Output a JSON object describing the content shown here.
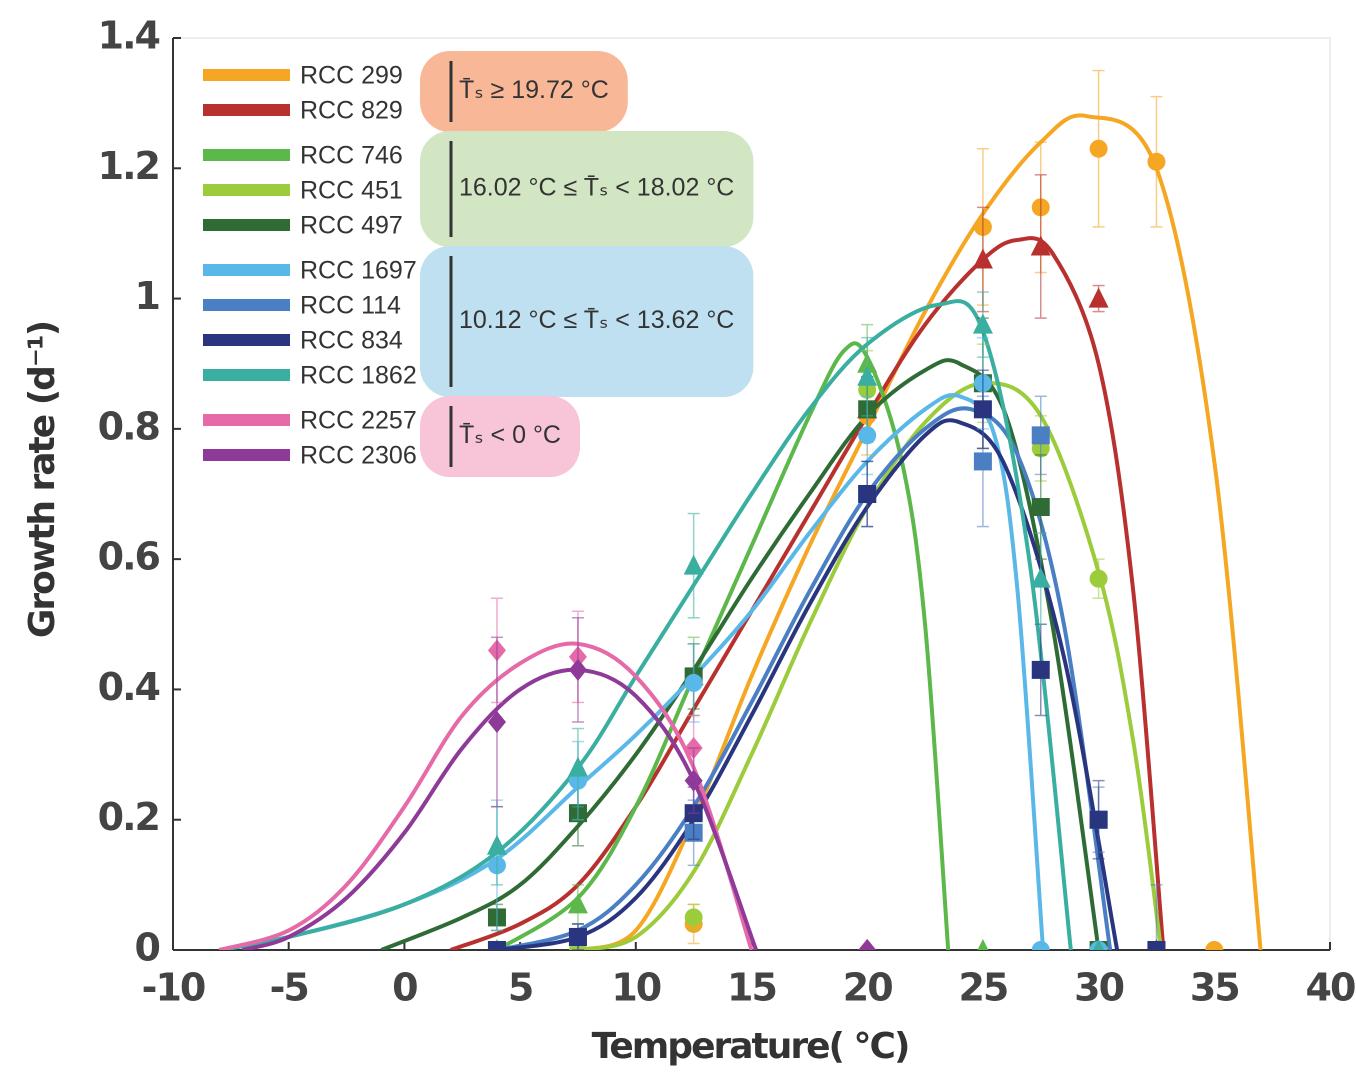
{
  "chart_data": {
    "type": "fitted-scatter",
    "x_label": "Temperature( °C)",
    "y_label": "Growth rate (d⁻¹)",
    "xlim": [
      -10,
      40
    ],
    "ylim": [
      0,
      1.4
    ],
    "xticks": [
      -10,
      -5,
      0,
      5,
      10,
      15,
      20,
      25,
      30,
      35,
      40
    ],
    "yticks": [
      0,
      0.2,
      0.4,
      0.6,
      0.8,
      1,
      1.2,
      1.4
    ],
    "series": [
      {
        "name": "RCC 299",
        "color": "#f5a623",
        "marker": "circle",
        "x": [
          12.5,
          20,
          25,
          27.5,
          30,
          32.5,
          35
        ],
        "values": [
          0.04,
          0.82,
          1.11,
          1.14,
          1.23,
          1.21,
          0
        ],
        "errors": [
          0.03,
          0.06,
          0.12,
          0.1,
          0.12,
          0.1,
          null
        ],
        "fit_x": [
          7.5,
          10,
          12.5,
          15,
          17.5,
          20,
          22.5,
          25,
          27.5,
          29.5,
          32.5,
          35,
          37
        ],
        "fit_values": [
          0,
          0.03,
          0.2,
          0.42,
          0.62,
          0.8,
          0.98,
          1.13,
          1.24,
          1.28,
          1.2,
          0.75,
          0
        ]
      },
      {
        "name": "RCC 829",
        "color": "#b8312f",
        "marker": "triangle",
        "x": [
          20,
          25,
          27.5,
          30,
          32.5
        ],
        "values": [
          0.83,
          1.06,
          1.08,
          1.0,
          0
        ],
        "errors": [
          0.05,
          0.08,
          0.11,
          0.02,
          null
        ],
        "fit_x": [
          2,
          5,
          7.5,
          10,
          12.5,
          15,
          17.5,
          20,
          22.5,
          25,
          26.5,
          28,
          30,
          31.5,
          32.8
        ],
        "fit_values": [
          0,
          0.04,
          0.1,
          0.22,
          0.37,
          0.52,
          0.67,
          0.82,
          0.96,
          1.06,
          1.09,
          1.07,
          0.9,
          0.55,
          0
        ]
      },
      {
        "name": "RCC 746",
        "color": "#5cb84a",
        "marker": "triangle",
        "x": [
          4,
          7.5,
          12.5,
          20,
          25
        ],
        "values": [
          0,
          0.07,
          0.42,
          0.9,
          0
        ],
        "errors": [
          null,
          0.03,
          0.06,
          0.06,
          null
        ],
        "fit_x": [
          4,
          7.5,
          10,
          12.5,
          15,
          17.5,
          19,
          20,
          21.5,
          22.5,
          23.5
        ],
        "fit_values": [
          0,
          0.08,
          0.22,
          0.42,
          0.62,
          0.82,
          0.92,
          0.91,
          0.75,
          0.5,
          0
        ]
      },
      {
        "name": "RCC 451",
        "color": "#9ccc3c",
        "marker": "circle",
        "x": [
          7.5,
          12.5,
          20,
          25,
          27.5,
          30,
          32.5
        ],
        "values": [
          0,
          0.05,
          0.86,
          0.87,
          0.77,
          0.57,
          0
        ],
        "errors": [
          null,
          0.02,
          0.06,
          0.06,
          0.05,
          0.03,
          null
        ],
        "fit_x": [
          7.5,
          10,
          12.5,
          15,
          17.5,
          20,
          22.5,
          25,
          27.5,
          30,
          31.5,
          32.7
        ],
        "fit_values": [
          0,
          0.02,
          0.12,
          0.3,
          0.5,
          0.68,
          0.81,
          0.87,
          0.82,
          0.58,
          0.32,
          0
        ]
      },
      {
        "name": "RCC 497",
        "color": "#2e6b35",
        "marker": "square",
        "x": [
          4,
          7.5,
          12.5,
          20,
          25,
          27.5,
          30
        ],
        "values": [
          0.05,
          0.21,
          0.42,
          0.83,
          0.87,
          0.68,
          0
        ],
        "errors": [
          0.02,
          0.05,
          0.05,
          0.05,
          0.1,
          0.08,
          null
        ],
        "fit_x": [
          -1,
          2.5,
          5,
          7.5,
          10,
          12.5,
          15,
          17.5,
          20,
          22.5,
          24,
          26,
          28,
          30
        ],
        "fit_values": [
          0,
          0.05,
          0.1,
          0.19,
          0.3,
          0.43,
          0.57,
          0.7,
          0.82,
          0.89,
          0.9,
          0.82,
          0.5,
          0
        ]
      },
      {
        "name": "RCC 1697",
        "color": "#5ab8e8",
        "marker": "circle",
        "x": [
          4,
          7.5,
          12.5,
          20,
          25,
          27.5,
          30
        ],
        "values": [
          0.13,
          0.26,
          0.41,
          0.79,
          0.87,
          0,
          0
        ],
        "errors": [
          0.1,
          0.06,
          0.06,
          0.06,
          0.07,
          null,
          null
        ],
        "fit_x": [
          -8,
          -5,
          0,
          4,
          7.5,
          10,
          12.5,
          15,
          17.5,
          20,
          22.5,
          24,
          25.5,
          26.5,
          27.6
        ],
        "fit_values": [
          0,
          0.02,
          0.07,
          0.14,
          0.25,
          0.33,
          0.42,
          0.52,
          0.64,
          0.75,
          0.83,
          0.85,
          0.79,
          0.55,
          0
        ]
      },
      {
        "name": "RCC 114",
        "color": "#4a7fc4",
        "marker": "square",
        "x": [
          4,
          7.5,
          12.5,
          20,
          25,
          27.5,
          30,
          32.5
        ],
        "values": [
          0,
          0.02,
          0.18,
          0.7,
          0.75,
          0.79,
          0.2,
          0
        ],
        "errors": [
          null,
          0.02,
          0.05,
          0.05,
          0.1,
          0.06,
          0.05,
          0.1
        ],
        "fit_x": [
          4,
          7.5,
          10,
          12.5,
          15,
          17.5,
          20,
          22.5,
          24.5,
          26.5,
          28.5,
          30.5
        ],
        "fit_values": [
          0,
          0.03,
          0.1,
          0.22,
          0.38,
          0.55,
          0.7,
          0.8,
          0.83,
          0.76,
          0.5,
          0
        ]
      },
      {
        "name": "RCC 834",
        "color": "#2a3580",
        "marker": "square",
        "x": [
          4,
          7.5,
          12.5,
          20,
          25,
          27.5,
          30,
          32.5
        ],
        "values": [
          0,
          0.02,
          0.21,
          0.7,
          0.83,
          0.43,
          0.2,
          0
        ],
        "errors": [
          null,
          0.02,
          0.04,
          0.05,
          0.06,
          0.07,
          0.06,
          null
        ],
        "fit_x": [
          4,
          7.5,
          10,
          12.5,
          15,
          17.5,
          20,
          22.5,
          24,
          26,
          28.5,
          30.8
        ],
        "fit_values": [
          0,
          0.02,
          0.08,
          0.2,
          0.36,
          0.53,
          0.68,
          0.79,
          0.81,
          0.74,
          0.45,
          0
        ]
      },
      {
        "name": "RCC 1862",
        "color": "#3aaea0",
        "marker": "triangle",
        "x": [
          4,
          7.5,
          12.5,
          20,
          25,
          27.5,
          30
        ],
        "values": [
          0.16,
          0.28,
          0.59,
          0.88,
          0.96,
          0.57,
          0
        ],
        "errors": [
          0.06,
          0.06,
          0.08,
          0.06,
          0.05,
          0.07,
          null
        ],
        "fit_x": [
          -8,
          -5,
          0,
          4,
          7.5,
          10,
          12.5,
          15,
          17.5,
          20,
          23,
          25,
          27,
          28.8
        ],
        "fit_values": [
          0,
          0.02,
          0.07,
          0.15,
          0.28,
          0.42,
          0.56,
          0.7,
          0.83,
          0.93,
          0.99,
          0.95,
          0.6,
          0
        ]
      },
      {
        "name": "RCC 2257",
        "color": "#e66aa8",
        "marker": "diamond",
        "x": [
          4,
          7.5,
          12.5,
          20
        ],
        "values": [
          0.46,
          0.45,
          0.31,
          0
        ],
        "errors": [
          0.08,
          0.07,
          0.05,
          null
        ],
        "fit_x": [
          -8,
          -5,
          -2.5,
          0,
          2.5,
          5,
          7.5,
          10,
          12.5,
          15
        ],
        "fit_values": [
          0,
          0.03,
          0.1,
          0.22,
          0.36,
          0.44,
          0.47,
          0.42,
          0.28,
          0
        ]
      },
      {
        "name": "RCC 2306",
        "color": "#8e3a98",
        "marker": "diamond",
        "x": [
          4,
          7.5,
          12.5,
          20
        ],
        "values": [
          0.35,
          0.43,
          0.26,
          0
        ],
        "errors": [
          0.13,
          0.08,
          0.05,
          null
        ],
        "fit_x": [
          -7,
          -5,
          -2.5,
          0,
          2.5,
          5,
          7.5,
          10,
          12.5,
          15.2
        ],
        "fit_values": [
          0,
          0.02,
          0.08,
          0.18,
          0.31,
          0.4,
          0.43,
          0.39,
          0.26,
          0
        ]
      }
    ],
    "groups": [
      {
        "label": "T̄ₛ ≥ 19.72 °C",
        "color": "#f8b898",
        "series": [
          0,
          1
        ]
      },
      {
        "label": "16.02 °C ≤ T̄ₛ < 18.02 °C",
        "color": "#d3e6c4",
        "series": [
          2,
          3,
          4
        ]
      },
      {
        "label": "10.12 °C ≤ T̄ₛ < 13.62 °C",
        "color": "#bfe0f0",
        "series": [
          5,
          6,
          7,
          8
        ]
      },
      {
        "label": "T̄ₛ < 0 °C",
        "color": "#f7c4d8",
        "series": [
          9,
          10
        ]
      }
    ]
  }
}
